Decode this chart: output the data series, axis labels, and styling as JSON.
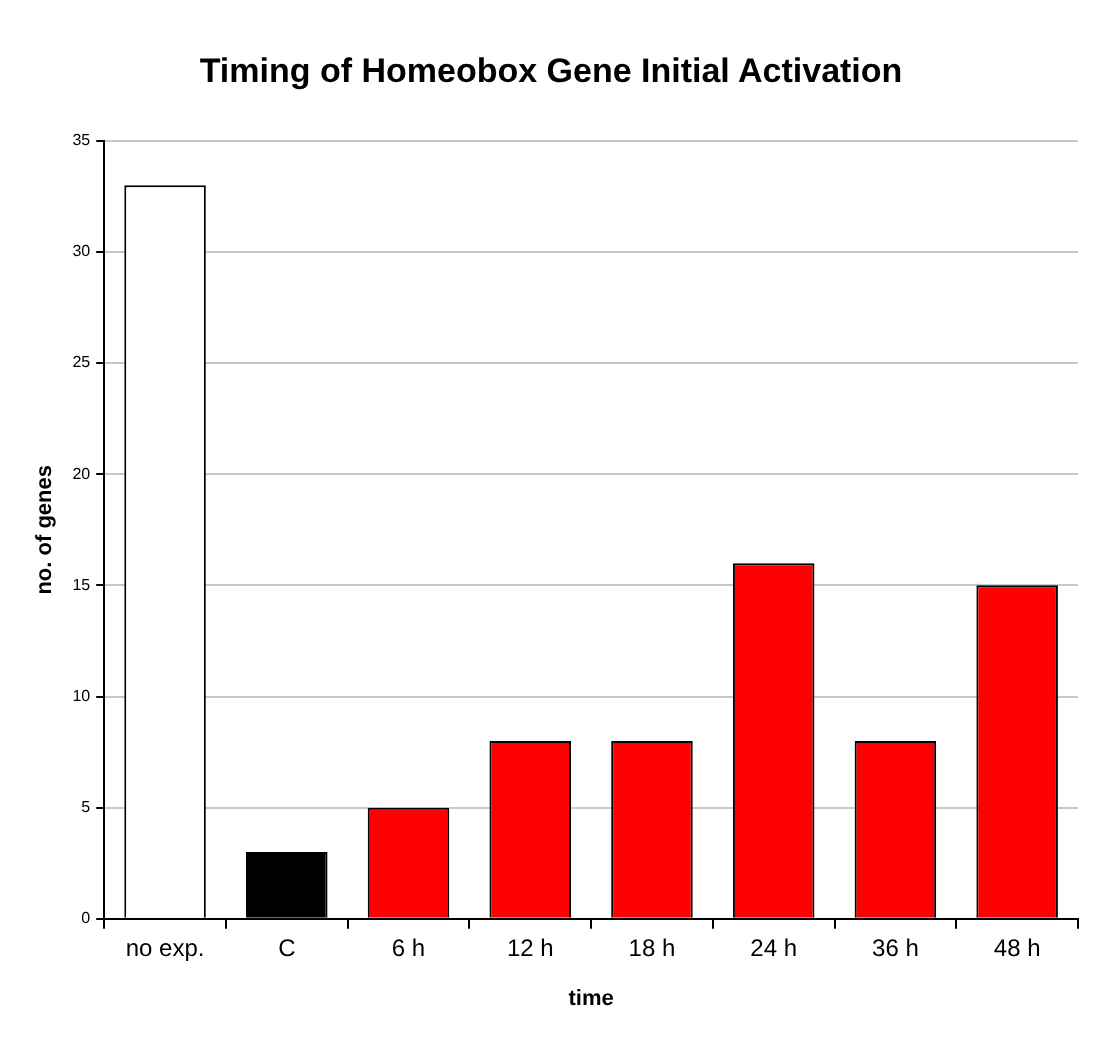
{
  "chart_data": {
    "type": "bar",
    "title": "Timing of Homeobox Gene Initial Activation",
    "xlabel": "time",
    "ylabel": "no. of genes",
    "categories": [
      "no exp.",
      "C",
      "6 h",
      "12 h",
      "18 h",
      "24 h",
      "36 h",
      "48 h"
    ],
    "values": [
      33,
      3,
      5,
      8,
      8,
      16,
      8,
      15
    ],
    "colors": [
      "#ffffff",
      "#000000",
      "#ff0000",
      "#ff0000",
      "#ff0000",
      "#ff0000",
      "#ff0000",
      "#ff0000"
    ],
    "ylim": [
      0,
      35
    ],
    "yticks": [
      0,
      5,
      10,
      15,
      20,
      25,
      30,
      35
    ],
    "grid": "y",
    "legend": false
  }
}
